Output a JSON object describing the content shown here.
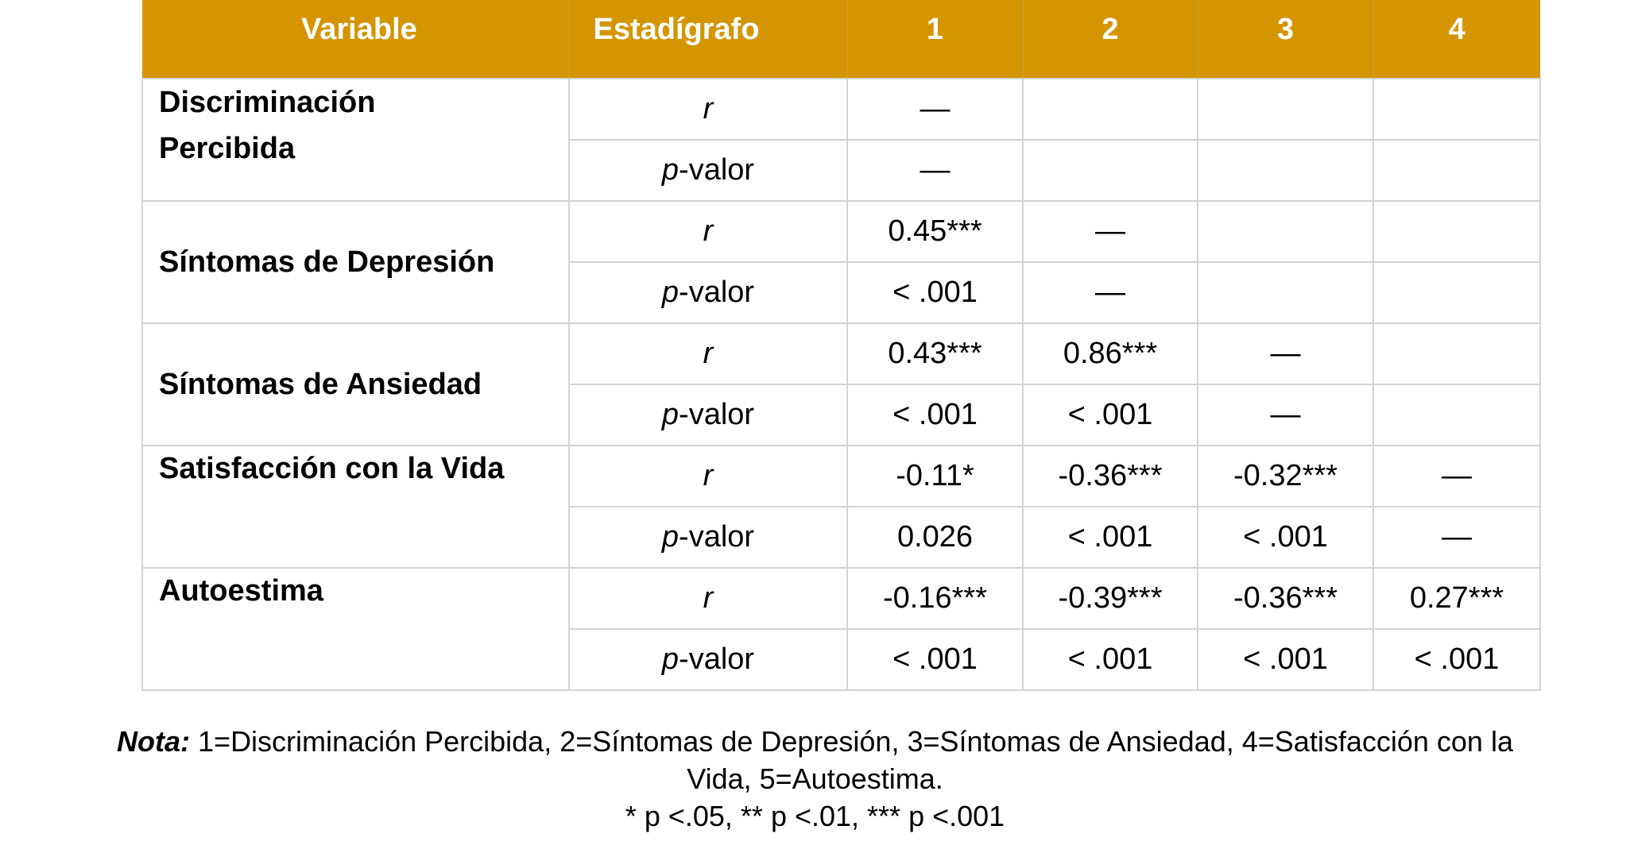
{
  "table": {
    "headers": {
      "variable": "Variable",
      "statistic": "Estadígrafo",
      "c1": "1",
      "c2": "2",
      "c3": "3",
      "c4": "4"
    },
    "stat_labels": {
      "r": "r",
      "p_italic": "p",
      "p_suffix": "-valor"
    },
    "rows": [
      {
        "variable_line1": "Discriminación",
        "variable_line2": "Percibida",
        "r": [
          "—",
          "",
          "",
          ""
        ],
        "p": [
          "—",
          "",
          "",
          ""
        ]
      },
      {
        "variable": "Síntomas de Depresión",
        "r": [
          "0.45***",
          "—",
          "",
          ""
        ],
        "p": [
          "< .001",
          "—",
          "",
          ""
        ]
      },
      {
        "variable": "Síntomas de Ansiedad",
        "r": [
          "0.43***",
          "0.86***",
          "—",
          ""
        ],
        "p": [
          "< .001",
          "< .001",
          "—",
          ""
        ]
      },
      {
        "variable": "Satisfacción con la Vida",
        "r": [
          "-0.11*",
          "-0.36***",
          "-0.32***",
          "—"
        ],
        "p": [
          "0.026",
          "< .001",
          "< .001",
          "—"
        ]
      },
      {
        "variable": "Autoestima",
        "r": [
          "-0.16***",
          "-0.39***",
          "-0.36***",
          "0.27***"
        ],
        "p": [
          "< .001",
          "< .001",
          "< .001",
          "< .001"
        ]
      }
    ]
  },
  "note": {
    "label": "Nota:",
    "line1": " 1=Discriminación Percibida, 2=Síntomas de Depresión, 3=Síntomas de Ansiedad, 4=Satisfacción con la",
    "line2": "Vida, 5=Autoestima.",
    "line3": "* p <.05, ** p <.01, *** p <.001"
  },
  "colors": {
    "header_bg": "#d49500",
    "header_text": "#ffffff",
    "grid": "#d3d3d3"
  }
}
